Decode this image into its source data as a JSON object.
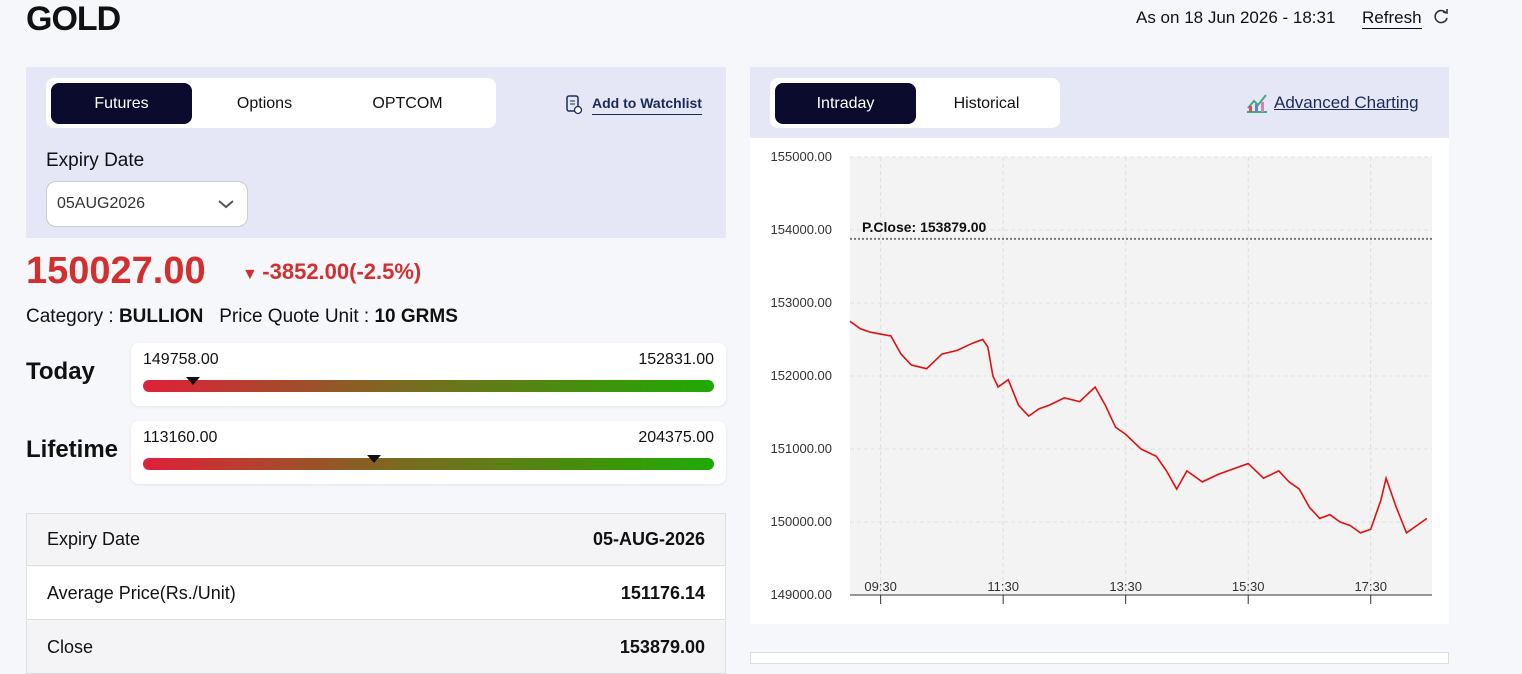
{
  "header": {
    "title": "GOLD",
    "as_on": "As on 18 Jun 2026 - 18:31",
    "refresh": "Refresh"
  },
  "left_panel": {
    "tabs": [
      "Futures",
      "Options",
      "OPTCOM"
    ],
    "active_tab": 0,
    "watchlist": "Add to Watchlist",
    "expiry_label": "Expiry Date",
    "expiry_select": "05AUG2026"
  },
  "quote": {
    "price": {
      "value": 150027,
      "label": "150027.00"
    },
    "change": "-3852.00(-2.5%)",
    "category_label": "Category :",
    "category": "BULLION",
    "unit_label": "Price Quote Unit :",
    "unit": "10 GRMS"
  },
  "ranges": [
    {
      "label": "Today",
      "low": {
        "value": 149758,
        "label": "149758.00"
      },
      "high": {
        "value": 152831,
        "label": "152831.00"
      }
    },
    {
      "label": "Lifetime",
      "low": {
        "value": 113160,
        "label": "113160.00"
      },
      "high": {
        "value": 204375,
        "label": "204375.00"
      }
    }
  ],
  "table": {
    "rows": [
      [
        "Expiry Date",
        "05-AUG-2026"
      ],
      [
        "Average Price(Rs./Unit)",
        "151176.14"
      ],
      [
        "Close",
        "153879.00"
      ]
    ]
  },
  "right_panel": {
    "tabs": [
      "Intraday",
      "Historical"
    ],
    "active_tab": 0,
    "advanced": "Advanced Charting"
  },
  "chart_data": {
    "type": "line",
    "x": [
      "09:00",
      "09:10",
      "09:20",
      "09:40",
      "09:50",
      "10:00",
      "10:15",
      "10:30",
      "10:45",
      "11:00",
      "11:10",
      "11:15",
      "11:20",
      "11:25",
      "11:35",
      "11:45",
      "11:55",
      "12:05",
      "12:15",
      "12:30",
      "12:45",
      "13:00",
      "13:10",
      "13:20",
      "13:30",
      "13:45",
      "14:00",
      "14:10",
      "14:20",
      "14:30",
      "14:45",
      "15:00",
      "15:10",
      "15:30",
      "15:45",
      "16:00",
      "16:10",
      "16:20",
      "16:30",
      "16:40",
      "16:50",
      "17:00",
      "17:10",
      "17:20",
      "17:30",
      "17:40",
      "17:45",
      "17:55",
      "18:05",
      "18:15",
      "18:25"
    ],
    "series": [
      {
        "color": "#e01010",
        "values": [
          152750,
          152650,
          152600,
          152550,
          152300,
          152150,
          152100,
          152300,
          152350,
          152450,
          152500,
          152400,
          152000,
          151850,
          151950,
          151600,
          151450,
          151550,
          151600,
          151700,
          151650,
          151850,
          151600,
          151300,
          151200,
          151000,
          150900,
          150700,
          150450,
          150700,
          150550,
          150650,
          150700,
          150800,
          150600,
          150700,
          150550,
          150450,
          150200,
          150050,
          150100,
          150000,
          149950,
          149850,
          149900,
          150300,
          150600,
          150200,
          149850,
          149950,
          150050
        ]
      }
    ],
    "xlim": [
      "09:00",
      "18:30"
    ],
    "xticks": [
      "09:30",
      "11:30",
      "13:30",
      "15:30",
      "17:30"
    ],
    "ylim": [
      149000,
      155000
    ],
    "yticks": [
      {
        "value": 149000,
        "label": "149000.00"
      },
      {
        "value": 150000,
        "label": "150000.00"
      },
      {
        "value": 151000,
        "label": "151000.00"
      },
      {
        "value": 152000,
        "label": "152000.00"
      },
      {
        "value": 153000,
        "label": "153000.00"
      },
      {
        "value": 154000,
        "label": "154000.00"
      },
      {
        "value": 155000,
        "label": "155000.00"
      }
    ],
    "reference": {
      "value": 153879,
      "label": "P.Close: 153879.00"
    },
    "grid": true
  }
}
